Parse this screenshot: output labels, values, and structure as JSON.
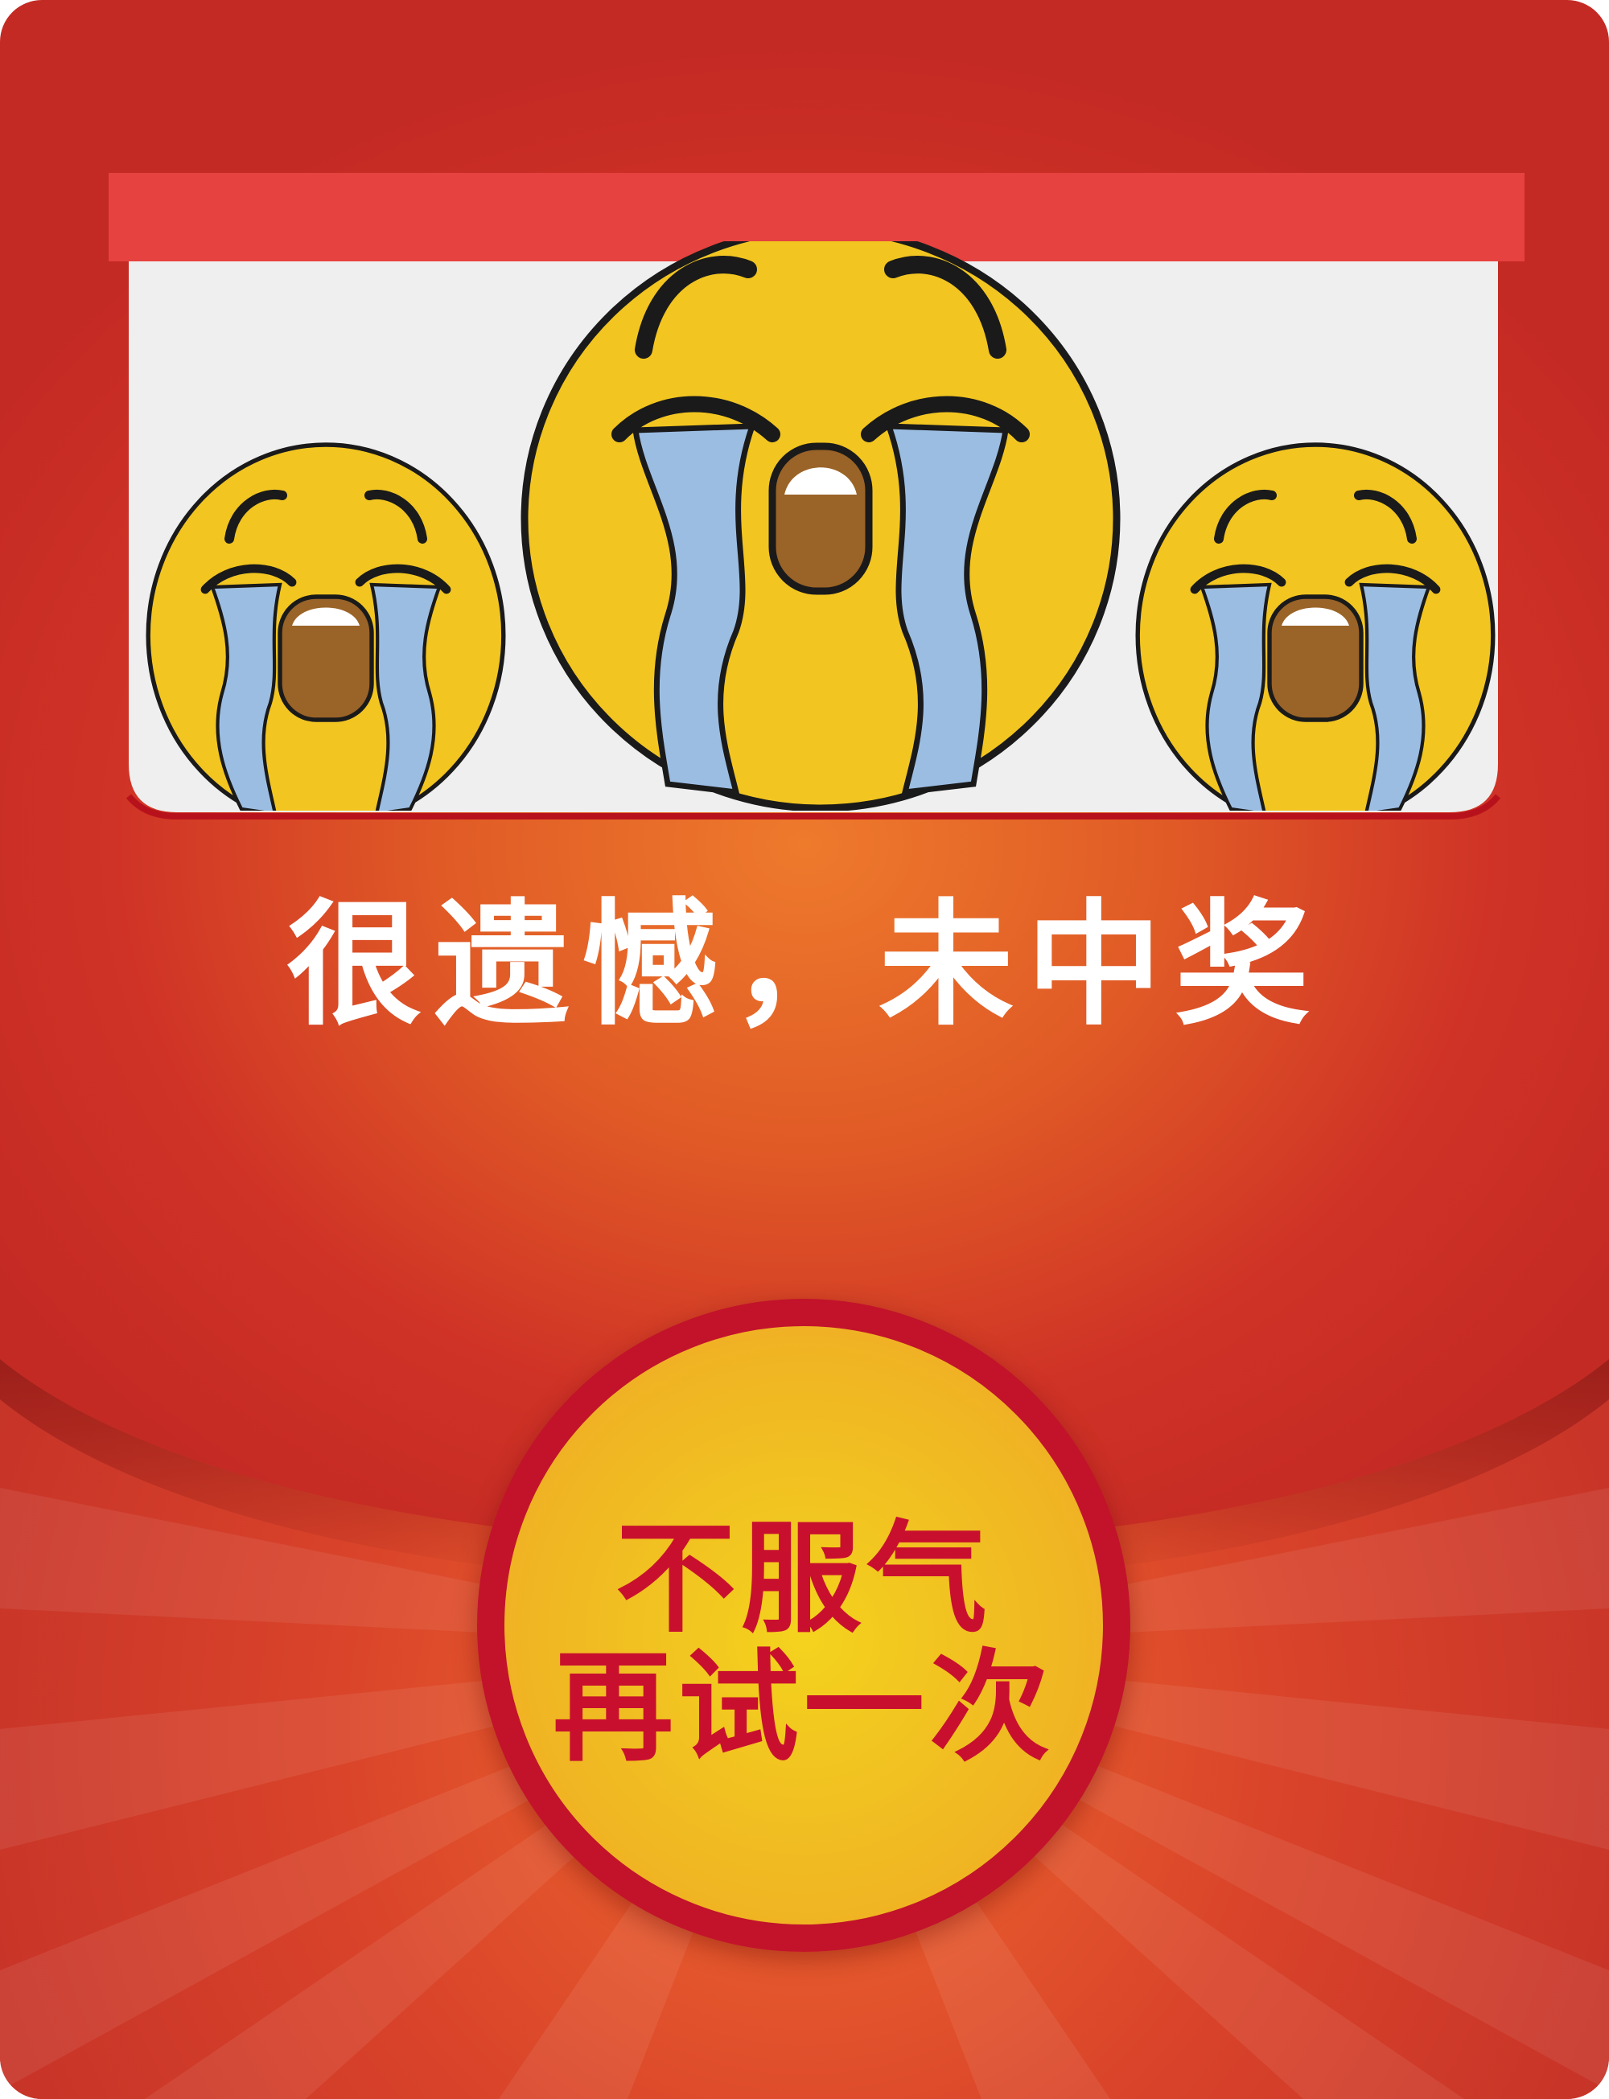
{
  "result": {
    "message": "很遗憾，未中奖"
  },
  "retry_button": {
    "line1": "不服气",
    "line2": "再试一次"
  },
  "illustration": {
    "icons": [
      "crying-face-icon",
      "crying-face-icon",
      "crying-face-icon"
    ]
  },
  "colors": {
    "background_red": "#c42a24",
    "background_orange": "#ee7a2c",
    "banner_red": "#e64240",
    "panel_gray": "#efefef",
    "face_yellow": "#f2c521",
    "tear_blue": "#9cbde2",
    "mouth_brown": "#9a6327",
    "button_gold": "#f1c121",
    "button_border": "#c2132b",
    "button_text": "#c8102e",
    "text_white": "#ffffff"
  }
}
